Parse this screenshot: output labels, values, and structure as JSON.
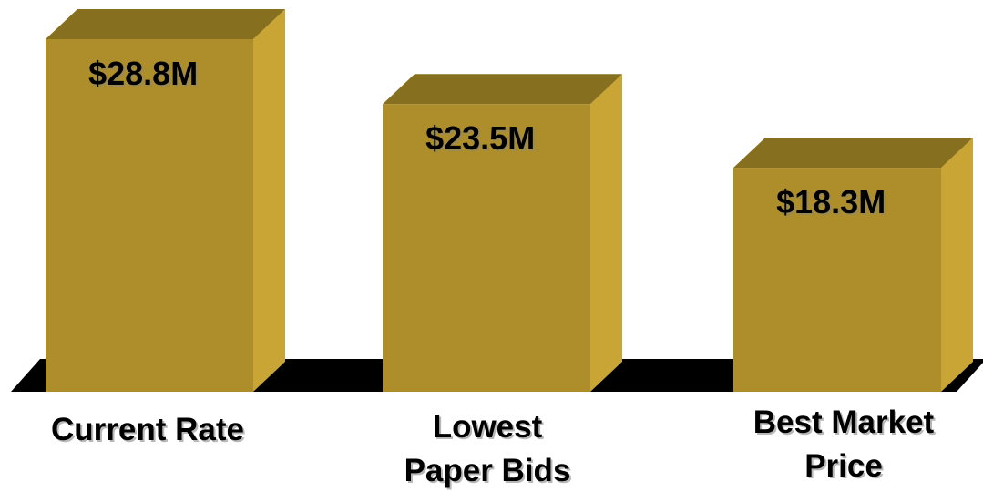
{
  "chart_data": {
    "type": "bar",
    "title": "",
    "xlabel": "",
    "ylabel": "",
    "categories": [
      [
        "Current Rate"
      ],
      [
        "Lowest",
        "Paper Bids"
      ],
      [
        "Best Market",
        "Price"
      ]
    ],
    "values": [
      28.8,
      23.5,
      18.3
    ],
    "value_labels": [
      "$28.8M",
      "$23.5M",
      "$18.3M"
    ],
    "unit": "$M",
    "ylim": [
      0,
      28.8
    ],
    "grid": false,
    "colors": {
      "front": "#ad8e2a",
      "top": "#86701f",
      "side": "#c8a534",
      "floor": "#000000"
    }
  }
}
